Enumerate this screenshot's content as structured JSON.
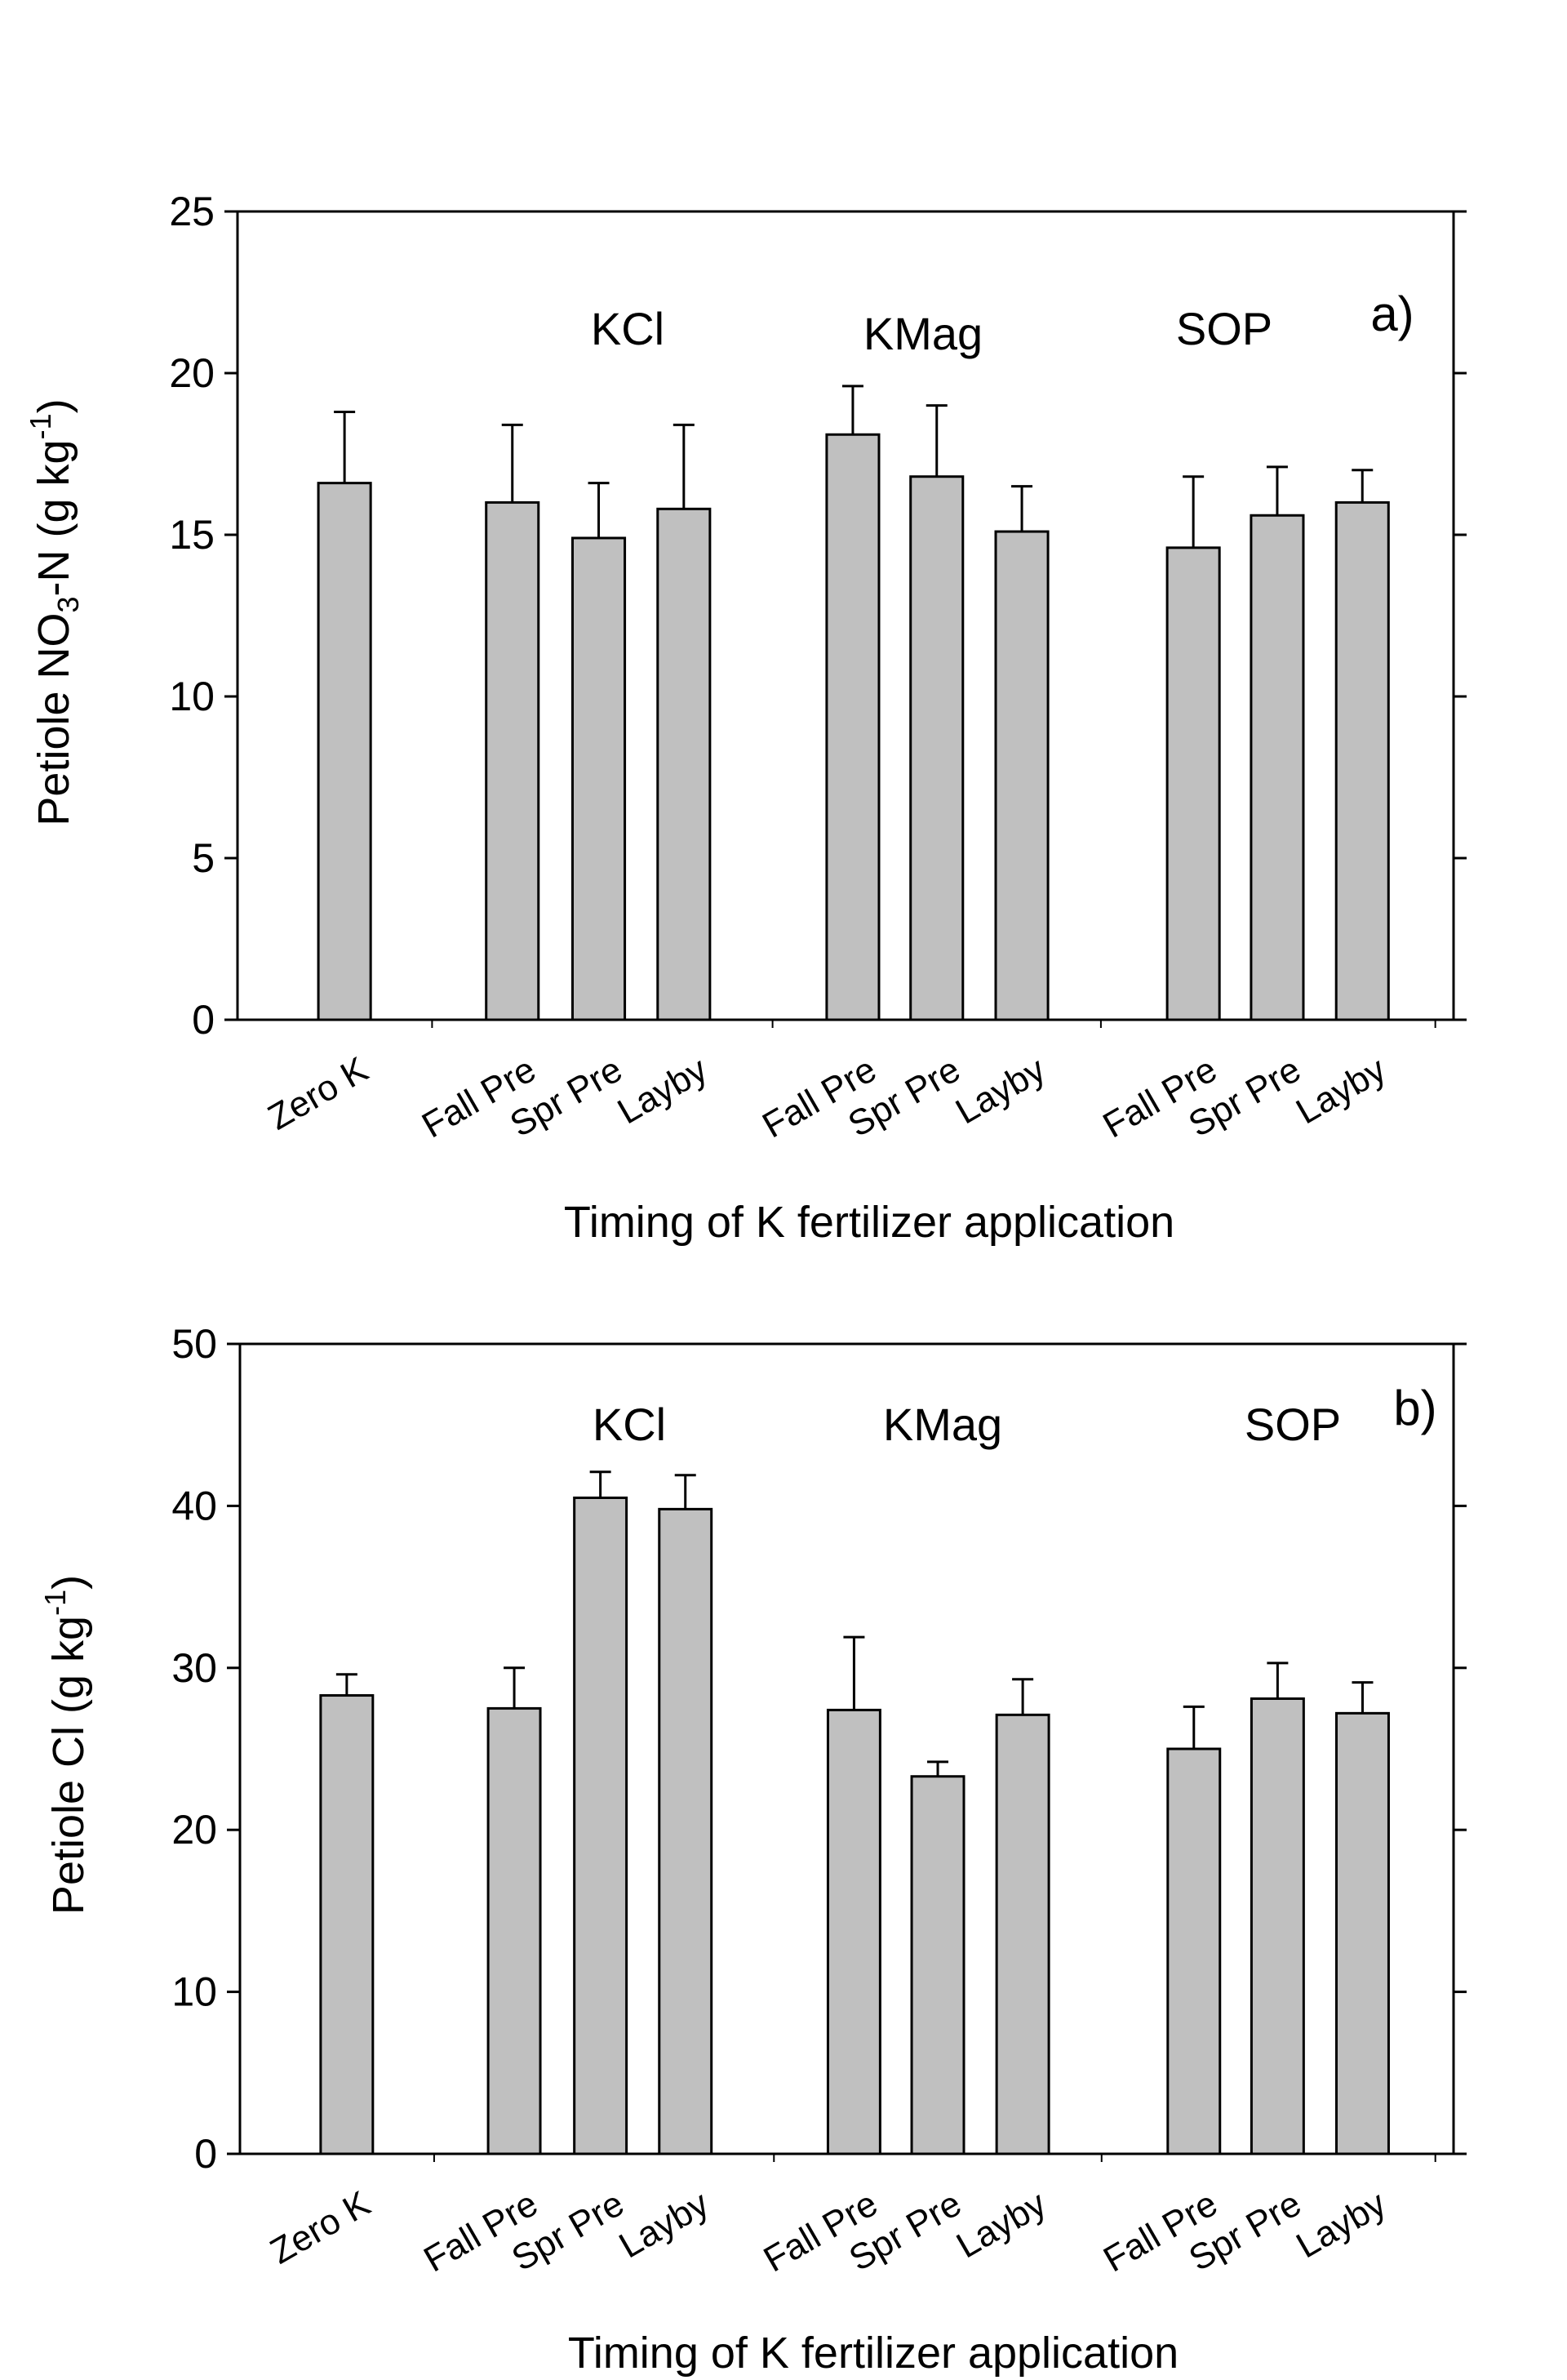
{
  "chart_data": [
    {
      "type": "bar",
      "panel_label": "a)",
      "categories": [
        "Zero K",
        "Fall Pre",
        "Spr Pre",
        "Layby",
        "Fall Pre",
        "Spr Pre",
        "Layby",
        "Fall Pre",
        "Spr Pre",
        "Layby"
      ],
      "groups": [
        "KCl",
        "KMag",
        "SOP"
      ],
      "values": [
        16.6,
        16.0,
        14.9,
        15.8,
        18.1,
        16.8,
        15.1,
        14.6,
        15.6,
        16.0
      ],
      "error_upper": [
        18.8,
        18.4,
        16.6,
        18.4,
        19.6,
        19.0,
        16.5,
        16.8,
        17.1,
        17.0
      ],
      "xlabel": "Timing of K fertilizer application",
      "ylabel_parts": [
        "Petiole NO",
        "3",
        "-N (g kg",
        "-1",
        ")"
      ],
      "ylim": [
        0,
        25
      ],
      "yticks": [
        "0",
        "5",
        "10",
        "15",
        "20",
        "25"
      ],
      "bar_color": "#c0c0c0",
      "grid": false
    },
    {
      "type": "bar",
      "panel_label": "b)",
      "categories": [
        "Zero K",
        "Fall Pre",
        "Spr Pre",
        "Layby",
        "Fall Pre",
        "Spr Pre",
        "Layby",
        "Fall Pre",
        "Spr Pre",
        "Layby"
      ],
      "groups": [
        "KCl",
        "KMag",
        "SOP"
      ],
      "values": [
        28.3,
        27.5,
        40.5,
        39.8,
        27.4,
        23.3,
        27.1,
        25.0,
        28.1,
        27.2
      ],
      "error_upper": [
        29.6,
        30.0,
        42.1,
        41.9,
        31.9,
        24.2,
        29.3,
        27.6,
        30.3,
        29.1
      ],
      "xlabel": "Timing of K fertilizer application",
      "ylabel_parts": [
        "Petiole Cl (g kg",
        "-1",
        ")"
      ],
      "ylim": [
        0,
        50
      ],
      "yticks": [
        "0",
        "10",
        "20",
        "30",
        "40",
        "50"
      ],
      "bar_color": "#c0c0c0",
      "grid": false
    }
  ]
}
